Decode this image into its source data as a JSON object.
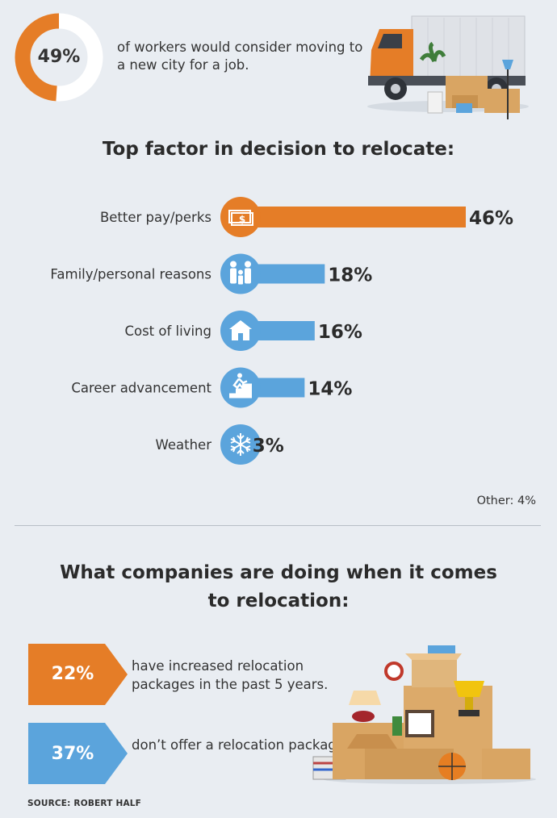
{
  "intro": {
    "percent_label": "49%",
    "percent_value": 49,
    "text": "of workers would consider moving to a new city for a job.",
    "colors": {
      "filled": "#e57d27",
      "unfilled": "#ffffff"
    }
  },
  "factor_title": "Top factor in decision to relocate:",
  "chart_data": {
    "type": "bar",
    "orientation": "horizontal",
    "title": "Top factor in decision to relocate:",
    "categories": [
      "Better pay/perks",
      "Family/personal reasons",
      "Cost of living",
      "Career advancement",
      "Weather"
    ],
    "values": [
      46,
      18,
      16,
      14,
      3
    ],
    "value_labels": [
      "46%",
      "18%",
      "16%",
      "14%",
      "3%"
    ],
    "icons": [
      "money-icon",
      "family-icon",
      "house-icon",
      "stairs-climber-icon",
      "snowflake-icon"
    ],
    "colors": [
      "#e57d27",
      "#5ba4dc",
      "#5ba4dc",
      "#5ba4dc",
      "#5ba4dc"
    ],
    "xlim": [
      0,
      46
    ],
    "grid": false,
    "note": "Other: 4%"
  },
  "companies_title": "What companies are doing when it comes to relocation:",
  "callouts": [
    {
      "percent": "22%",
      "text": "have increased relocation packages in the past 5 years.",
      "color": "#e57d27"
    },
    {
      "percent": "37%",
      "text": "don’t offer a relocation package.",
      "color": "#5ba4dc"
    }
  ],
  "source": "SOURCE: ROBERT HALF"
}
